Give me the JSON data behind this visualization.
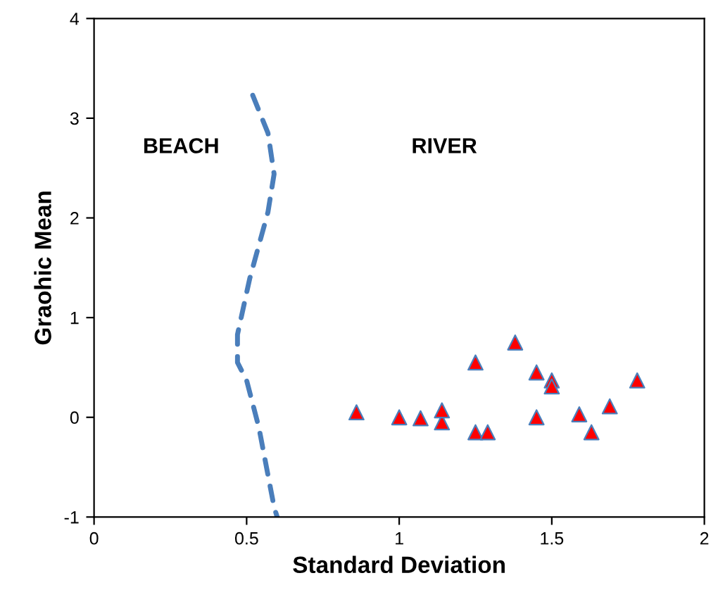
{
  "chart_data": {
    "type": "scatter",
    "xlabel": "Standard Deviation",
    "ylabel": "Graohic Mean",
    "xlim": [
      0,
      2
    ],
    "ylim": [
      -1,
      4
    ],
    "xticks": [
      0,
      0.5,
      1,
      1.5,
      2
    ],
    "yticks": [
      -1,
      0,
      1,
      2,
      3,
      4
    ],
    "grid": false,
    "legend": false,
    "annotations": [
      "BEACH",
      "RIVER"
    ],
    "series": [
      {
        "color": "#ff0000",
        "marker": "triangle",
        "x": [
          0.86,
          1.0,
          1.07,
          1.14,
          1.14,
          1.25,
          1.25,
          1.29,
          1.38,
          1.45,
          1.45,
          1.5,
          1.5,
          1.59,
          1.63,
          1.69,
          1.78
        ],
        "values": [
          0.05,
          0.0,
          -0.01,
          -0.05,
          0.07,
          0.55,
          -0.15,
          -0.15,
          0.75,
          0.45,
          0.0,
          0.37,
          0.31,
          0.03,
          -0.15,
          0.11,
          0.37
        ]
      },
      {
        "type": "line",
        "color": "#4a7ebb",
        "line_style": "dashed",
        "marker": "none",
        "x": [
          0.52,
          0.57,
          0.59,
          0.57,
          0.51,
          0.47,
          0.47,
          0.5,
          0.54,
          0.59,
          0.6
        ],
        "values": [
          3.23,
          2.85,
          2.44,
          2.06,
          1.39,
          0.83,
          0.55,
          0.37,
          -0.1,
          -0.9,
          -1.0
        ]
      }
    ]
  }
}
